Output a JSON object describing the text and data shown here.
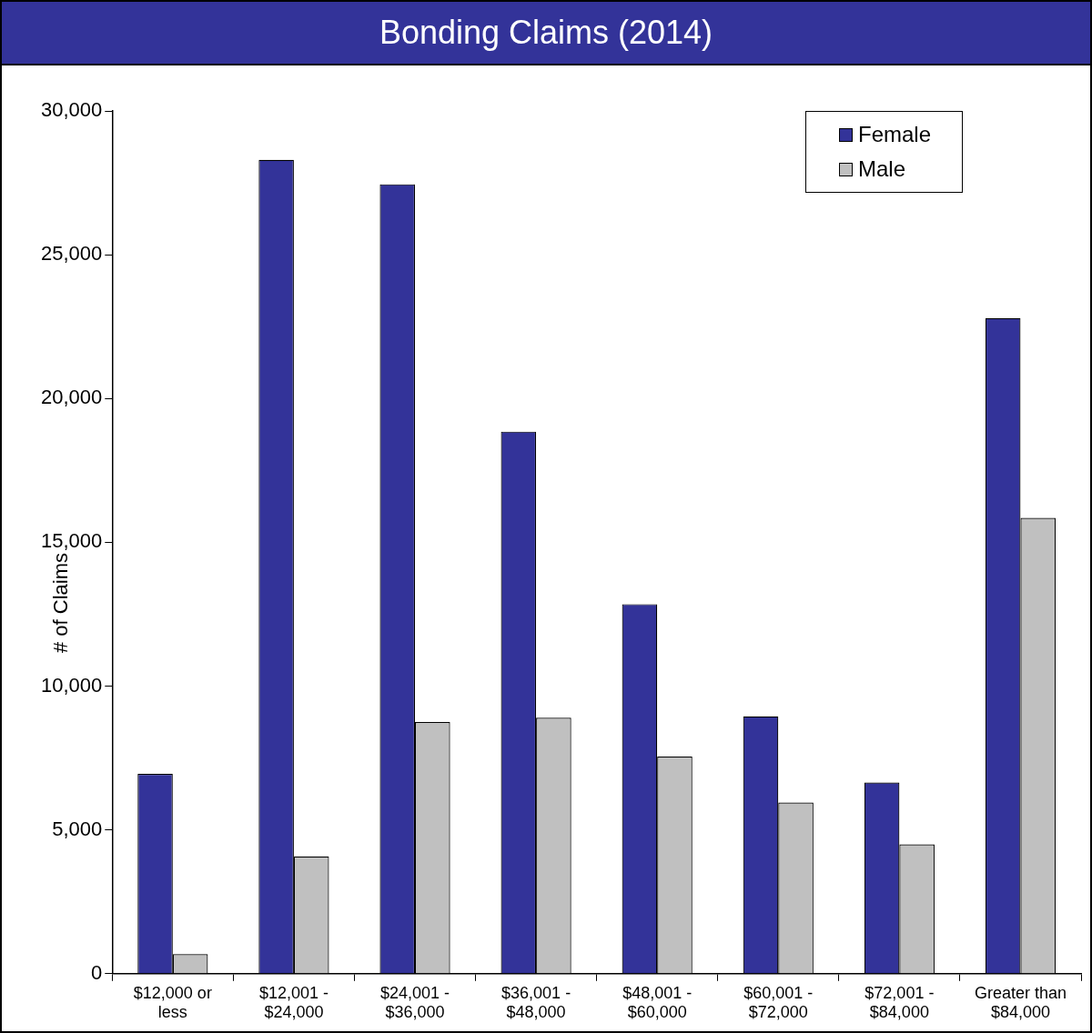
{
  "chart_data": {
    "type": "bar",
    "title": "Bonding Claims (2014)",
    "ylabel": "# of Claims",
    "categories": [
      "$12,000 or less",
      "$12,001 - $24,000",
      "$24,001 - $36,000",
      "$36,001 - $48,000",
      "$48,001 - $60,000",
      "$60,001 - $72,000",
      "$72,001 - $84,000",
      "Greater than $84,000"
    ],
    "series": [
      {
        "name": "Female",
        "color": "#333399",
        "values": [
          6950,
          28300,
          27450,
          18850,
          12850,
          8950,
          6650,
          22800
        ]
      },
      {
        "name": "Male",
        "color": "#c0c0c0",
        "values": [
          680,
          4080,
          8750,
          8900,
          7550,
          5950,
          4500,
          15850
        ]
      }
    ],
    "ylim": [
      0,
      30000
    ],
    "yticks": [
      {
        "value": 0,
        "label": "0"
      },
      {
        "value": 5000,
        "label": "5,000"
      },
      {
        "value": 10000,
        "label": "10,000"
      },
      {
        "value": 15000,
        "label": "15,000"
      },
      {
        "value": 20000,
        "label": "20,000"
      },
      {
        "value": 25000,
        "label": "25,000"
      },
      {
        "value": 30000,
        "label": "30,000"
      }
    ],
    "grid": false,
    "legend": "top right"
  }
}
